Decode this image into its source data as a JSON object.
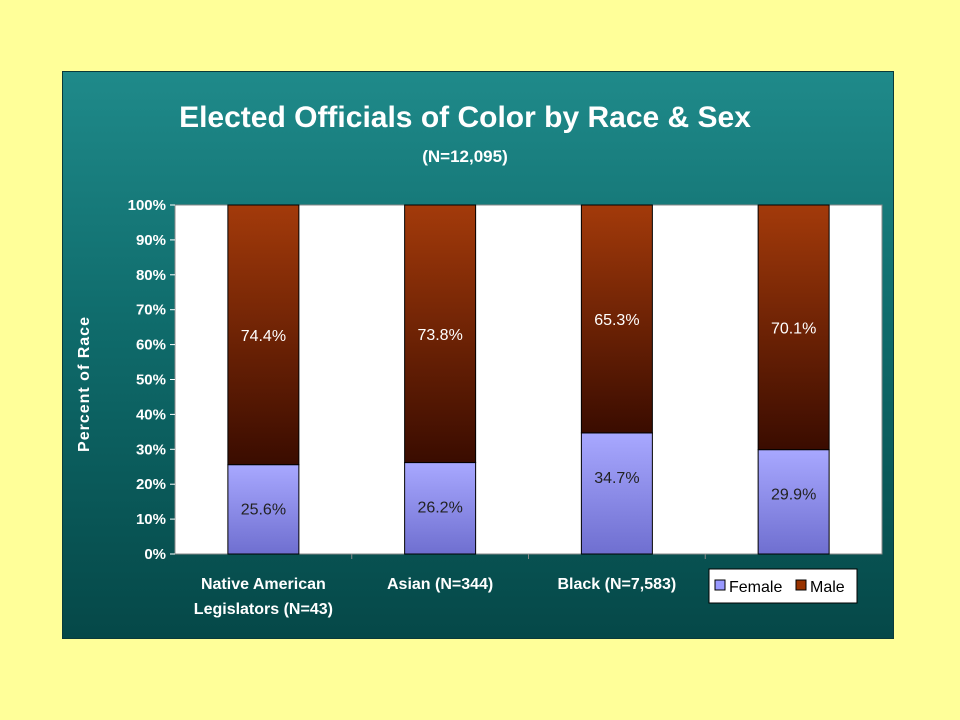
{
  "chart_data": {
    "type": "bar",
    "stacked": true,
    "title": "Elected Officials of Color by Race & Sex",
    "subtitle": "(N=12,095)",
    "xlabel": "",
    "ylabel": "Percent of Race",
    "ylim": [
      0,
      100
    ],
    "yticks": [
      "0%",
      "10%",
      "20%",
      "30%",
      "40%",
      "50%",
      "60%",
      "70%",
      "80%",
      "90%",
      "100%"
    ],
    "categories": [
      [
        "Native American",
        "Legislators (N=43)"
      ],
      [
        "Asian (N=344)"
      ],
      [
        "Black (N=7,583)"
      ],
      [
        ""
      ]
    ],
    "series": [
      {
        "name": "Female",
        "values": [
          25.6,
          26.2,
          34.7,
          29.9
        ],
        "labels": [
          "25.6%",
          "26.2%",
          "34.7%",
          "29.9%"
        ]
      },
      {
        "name": "Male",
        "values": [
          74.4,
          73.8,
          65.3,
          70.1
        ],
        "labels": [
          "74.4%",
          "73.8%",
          "65.3%",
          "70.1%"
        ]
      }
    ],
    "grid": false,
    "legend": "bottom-right",
    "colors": {
      "female": "#9999FF",
      "male": "#993300",
      "panel": "#0F6B6B",
      "page": "#FFFF99",
      "plot_bg": "#FFFFFF"
    }
  }
}
